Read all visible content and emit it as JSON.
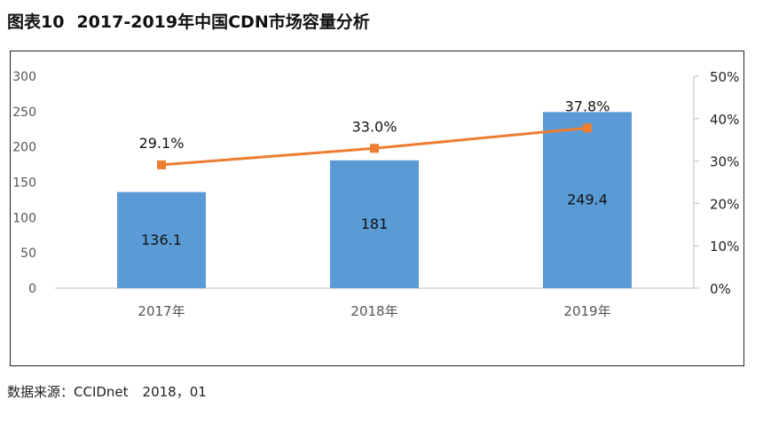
{
  "header": {
    "figure_label": "图表10",
    "title": "2017-2019年中国CDN市场容量分析"
  },
  "footer": {
    "source": "数据来源：CCIDnet",
    "date": "2018，01"
  },
  "colors": {
    "bar": "#5b9bd5",
    "line": "#ed7d31",
    "axis": "#bfbfbf",
    "text": "#333333"
  },
  "chart_data": {
    "type": "bar",
    "categories": [
      "2017年",
      "2018年",
      "2019年"
    ],
    "series": [
      {
        "type": "bar",
        "axis": "left",
        "values": [
          136.1,
          181,
          249.4
        ],
        "labels": [
          "136.1",
          "181",
          "249.4"
        ]
      },
      {
        "type": "line",
        "axis": "right",
        "values": [
          29.1,
          33.0,
          37.8
        ],
        "labels": [
          "29.1%",
          "33.0%",
          "37.8%"
        ]
      }
    ],
    "ylim_left": [
      0,
      300
    ],
    "yticks_left": [
      "0",
      "50",
      "100",
      "150",
      "200",
      "250",
      "300"
    ],
    "ylim_right": [
      0,
      50
    ],
    "yticks_right": [
      "0%",
      "10%",
      "20%",
      "30%",
      "40%",
      "50%"
    ],
    "grid": false,
    "legend": "none"
  }
}
